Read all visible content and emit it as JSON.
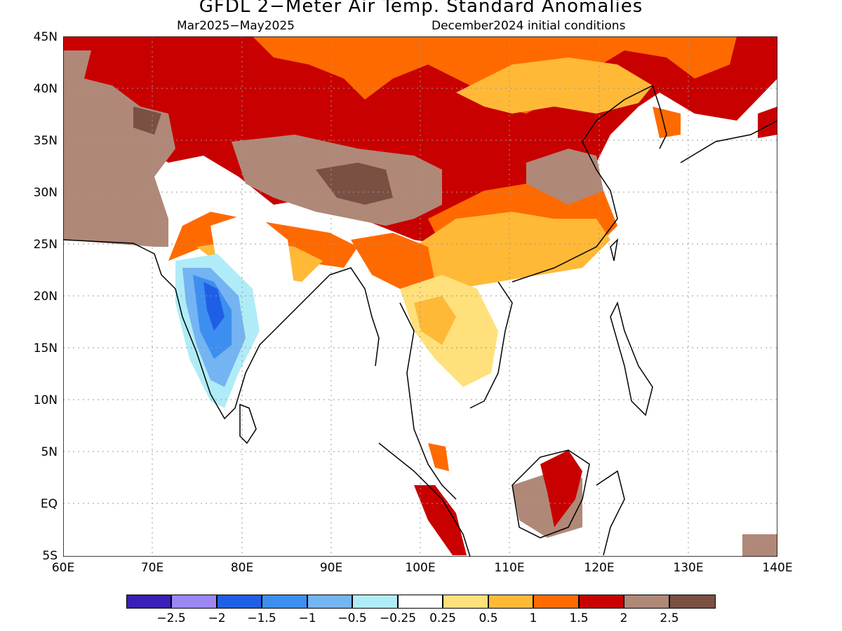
{
  "header": {
    "title": "GFDL 2−Meter Air Temp. Standard Anomalies",
    "period": "Mar2025−May2025",
    "initial_conditions": "December2024 initial conditions"
  },
  "map": {
    "lat_labels": [
      "45N",
      "40N",
      "35N",
      "30N",
      "25N",
      "20N",
      "15N",
      "10N",
      "5N",
      "EQ",
      "5S"
    ],
    "lon_labels": [
      "60E",
      "70E",
      "80E",
      "90E",
      "100E",
      "110E",
      "120E",
      "130E",
      "140E"
    ]
  },
  "colorbar": {
    "colors": [
      "#3a1fb8",
      "#9b86f3",
      "#1f5fe6",
      "#3c8ff0",
      "#74b4f2",
      "#b0ecf7",
      "#ffffff",
      "#ffe07a",
      "#ffb937",
      "#ff6a00",
      "#c80000",
      "#b08878",
      "#7a5043"
    ],
    "labels": [
      "−2.5",
      "−2",
      "−1.5",
      "−1",
      "−0.5",
      "−0.25",
      "0.25",
      "0.5",
      "1",
      "1.5",
      "2",
      "2.5"
    ]
  }
}
